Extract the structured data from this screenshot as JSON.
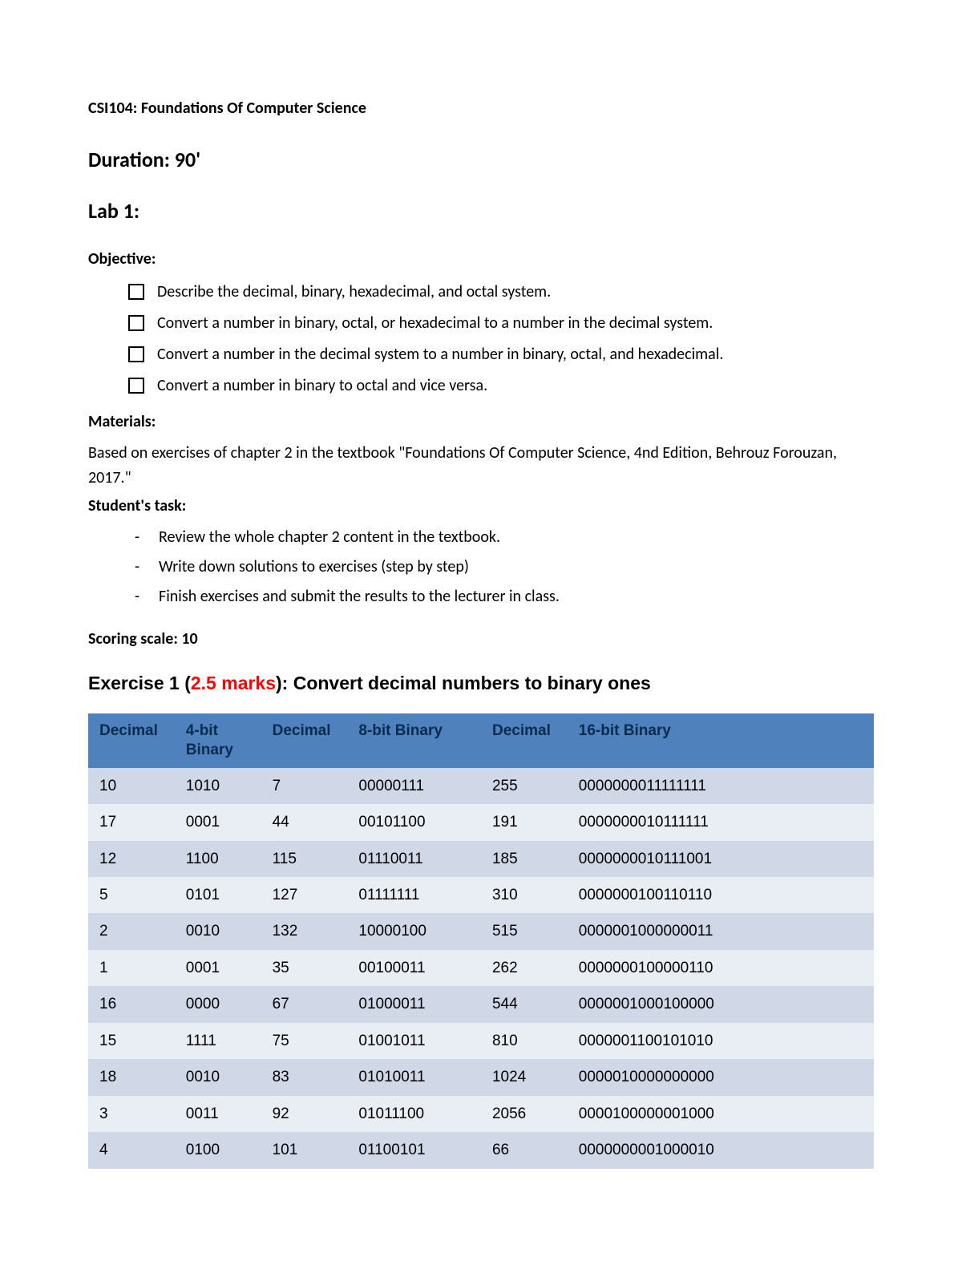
{
  "course_title": "CSI104: Foundations Of Computer Science",
  "duration": "Duration: 90'",
  "lab_title": "Lab 1:",
  "objective_label": "Objective:",
  "objectives": [
    "Describe the decimal, binary, hexadecimal, and octal system.",
    "Convert a number in binary, octal, or hexadecimal to a number in the decimal system.",
    "Convert a number in the decimal system to a number in binary, octal, and hexadecimal.",
    "Convert a number in binary to octal and vice versa."
  ],
  "materials_label": "Materials:",
  "materials_text": "Based on exercises of chapter 2 in the textbook \"Foundations Of Computer Science, 4nd Edition, Behrouz Forouzan, 2017.\"",
  "task_label": "Student's task:",
  "tasks": [
    "Review the whole chapter 2 content in the textbook.",
    "Write down solutions to exercises (step by step)",
    "Finish exercises and submit the results to the lecturer in class."
  ],
  "scoring": "Scoring scale: 10",
  "exercise": {
    "prefix": "Exercise 1 (",
    "marks": "2.5 marks",
    "suffix": "): Convert decimal numbers to binary ones"
  },
  "table": {
    "type": "table",
    "header_bg": "#4f81bd",
    "header_fg": "#0a2b4f",
    "row_odd_bg": "#d0d8e8",
    "row_even_bg": "#e9edf4",
    "font_size": 19,
    "columns": [
      "Decimal",
      "4-bit Binary",
      "Decimal",
      "8-bit Binary",
      "Decimal",
      "16-bit Binary"
    ],
    "column_widths_pct": [
      11,
      11,
      11,
      17,
      11,
      39
    ],
    "rows": [
      [
        "10",
        "1010",
        "7",
        "00000111",
        "255",
        "0000000011111111"
      ],
      [
        "17",
        "0001",
        "44",
        "00101100",
        "191",
        "0000000010111111"
      ],
      [
        "12",
        "1100",
        "115",
        "01110011",
        "185",
        "0000000010111001"
      ],
      [
        "5",
        "0101",
        "127",
        "01111111",
        "310",
        "0000000100110110"
      ],
      [
        "2",
        "0010",
        "132",
        "10000100",
        "515",
        "0000001000000011"
      ],
      [
        "1",
        "0001",
        "35",
        "00100011",
        "262",
        "0000000100000110"
      ],
      [
        "16",
        "0000",
        "67",
        "01000011",
        "544",
        "0000001000100000"
      ],
      [
        "15",
        "1111",
        "75",
        "01001011",
        "810",
        "0000001100101010"
      ],
      [
        "18",
        "0010",
        "83",
        "01010011",
        "1024",
        "0000010000000000"
      ],
      [
        "3",
        "0011",
        "92",
        "01011100",
        "2056",
        "0000100000001000"
      ],
      [
        "4",
        "0100",
        "101",
        "01100101",
        "66",
        "0000000001000010"
      ]
    ]
  }
}
